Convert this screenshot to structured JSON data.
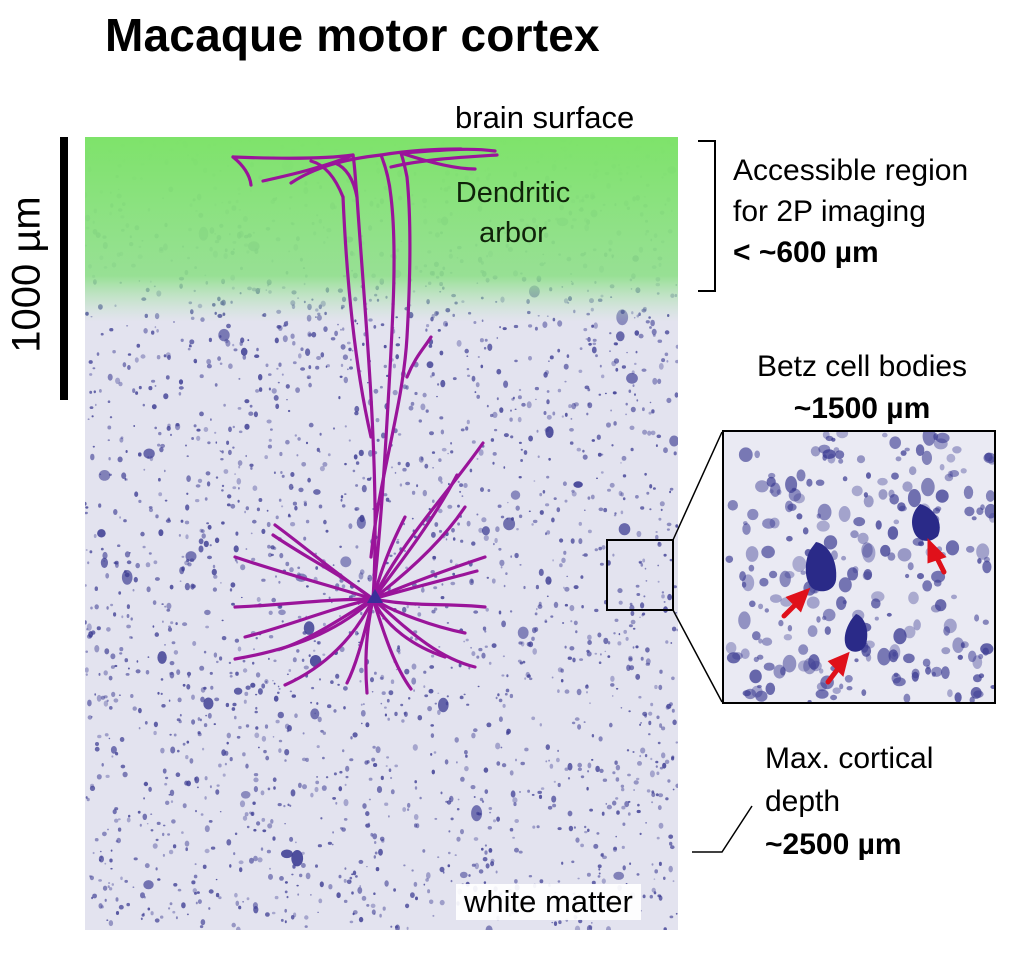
{
  "title": "Macaque motor cortex",
  "labels": {
    "brain_surface": "brain surface",
    "white_matter": "white matter",
    "dendritic_line1": "Dendritic",
    "dendritic_line2": "arbor",
    "scale_bar": "1000 µm"
  },
  "accessible": {
    "line1": "Accessible region",
    "line2": "for 2P imaging",
    "value": "< ~600 µm"
  },
  "betz": {
    "line1": "Betz cell bodies",
    "value": "~1500 µm"
  },
  "depth": {
    "line1": "Max. cortical",
    "line2": "depth",
    "value": "~2500 µm"
  },
  "colors": {
    "accessible_region": "#7fe06a",
    "nissl_stain": "#3d3d93",
    "tissue_background": "#e4e4ef",
    "neuron_trace": "#9a149a",
    "arrows": "#e0101a"
  }
}
